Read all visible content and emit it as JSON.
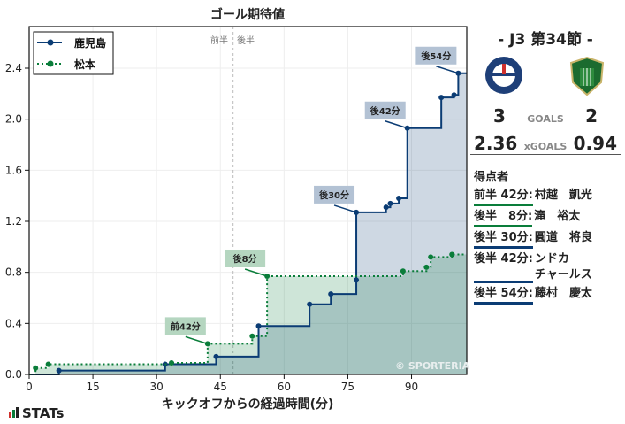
{
  "chart_data": {
    "type": "line",
    "title": "ゴール期待値",
    "xlabel": "キックオフからの経過時間(分)",
    "ylabel": "",
    "xticks": [
      0,
      15,
      30,
      45,
      60,
      75,
      90
    ],
    "yticks": [
      "0.0",
      "0.4",
      "0.8",
      "1.2",
      "1.6",
      "2.0",
      "2.4"
    ],
    "xlim": [
      0,
      103
    ],
    "ylim": [
      0,
      2.7
    ],
    "half_time_marker": {
      "x": 48,
      "labels": [
        "前半",
        "後半"
      ]
    },
    "legend": [
      {
        "name": "鹿児島",
        "color": "#0b3c74",
        "style": "solid"
      },
      {
        "name": "松本",
        "color": "#0a7d3a",
        "style": "dotted"
      }
    ],
    "series": [
      {
        "name": "鹿児島",
        "color": "#0b3c74",
        "points": [
          [
            0,
            0
          ],
          [
            7,
            0.03
          ],
          [
            32,
            0.08
          ],
          [
            44,
            0.14
          ],
          [
            54,
            0.38
          ],
          [
            66,
            0.55
          ],
          [
            71,
            0.63
          ],
          [
            77,
            0.74
          ],
          [
            77,
            1.27
          ],
          [
            84,
            1.31
          ],
          [
            85,
            1.34
          ],
          [
            87,
            1.38
          ],
          [
            89,
            1.93
          ],
          [
            97,
            2.17
          ],
          [
            100,
            2.19
          ],
          [
            101,
            2.36
          ],
          [
            103,
            2.36
          ]
        ]
      },
      {
        "name": "松本",
        "color": "#0a7d3a",
        "points": [
          [
            0,
            0
          ],
          [
            1.5,
            0.05
          ],
          [
            4.5,
            0.08
          ],
          [
            33.5,
            0.09
          ],
          [
            42,
            0.24
          ],
          [
            52.5,
            0.3
          ],
          [
            56,
            0.77
          ],
          [
            88,
            0.81
          ],
          [
            93.5,
            0.84
          ],
          [
            94.5,
            0.92
          ],
          [
            99.5,
            0.94
          ],
          [
            103,
            0.94
          ]
        ]
      }
    ],
    "annotations": [
      {
        "label": "前42分",
        "team": "松本",
        "x": 42,
        "y": 0.24
      },
      {
        "label": "後8分",
        "team": "松本",
        "x": 56,
        "y": 0.77
      },
      {
        "label": "後30分",
        "team": "鹿児島",
        "x": 77,
        "y": 1.27
      },
      {
        "label": "後42分",
        "team": "鹿児島",
        "x": 89,
        "y": 1.93
      },
      {
        "label": "後54分",
        "team": "鹿児島",
        "x": 101,
        "y": 2.36
      }
    ],
    "watermark": "© SPORTERIA",
    "grid": true,
    "legend_position": "upper left"
  },
  "side": {
    "round": "- J3 第34節 -",
    "home": {
      "name": "鹿児島",
      "goals": "3",
      "xg": "2.36"
    },
    "away": {
      "name": "松本",
      "goals": "2",
      "xg": "0.94"
    },
    "goals_label": "GOALS",
    "xgoals_label": "xGOALS",
    "scorers_title": "得点者",
    "scorers": [
      {
        "time": "前半 42分",
        "name": "村越　凱光",
        "color": "#0a7d3a"
      },
      {
        "time": "後半　8分",
        "name": "滝　裕太",
        "color": "#0a7d3a"
      },
      {
        "time": "後半 30分",
        "name": "圓道　将良",
        "color": "#0b3c74"
      },
      {
        "time": "後半 42分",
        "name": "ンドカ\nチャールス",
        "color": "#0b3c74"
      },
      {
        "time": "後半 54分",
        "name": "藤村　慶太",
        "color": "#0b3c74"
      }
    ]
  },
  "brand": "STATs"
}
